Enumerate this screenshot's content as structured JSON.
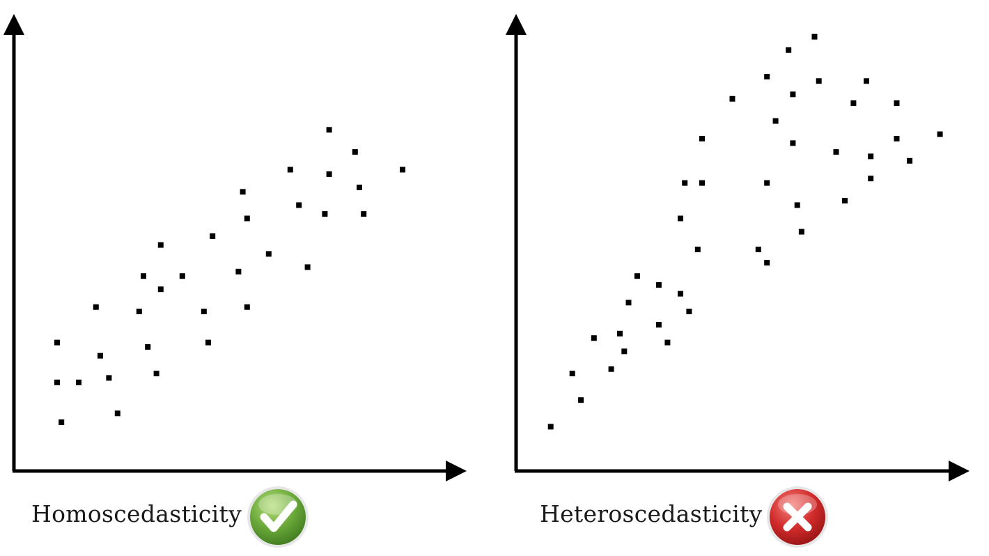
{
  "chart_data": [
    {
      "type": "scatter",
      "title": "",
      "xlabel": "",
      "ylabel": "",
      "caption": "Homoscedasticity",
      "badge": "check-icon",
      "badge_color": "#6aa83a",
      "points": [
        [
          0.1,
          0.29
        ],
        [
          0.1,
          0.2
        ],
        [
          0.11,
          0.11
        ],
        [
          0.15,
          0.2
        ],
        [
          0.19,
          0.37
        ],
        [
          0.2,
          0.26
        ],
        [
          0.22,
          0.21
        ],
        [
          0.24,
          0.13
        ],
        [
          0.29,
          0.36
        ],
        [
          0.3,
          0.44
        ],
        [
          0.31,
          0.28
        ],
        [
          0.33,
          0.22
        ],
        [
          0.34,
          0.41
        ],
        [
          0.34,
          0.51
        ],
        [
          0.39,
          0.44
        ],
        [
          0.44,
          0.36
        ],
        [
          0.45,
          0.29
        ],
        [
          0.46,
          0.53
        ],
        [
          0.52,
          0.45
        ],
        [
          0.53,
          0.63
        ],
        [
          0.54,
          0.57
        ],
        [
          0.54,
          0.37
        ],
        [
          0.59,
          0.49
        ],
        [
          0.64,
          0.68
        ],
        [
          0.66,
          0.6
        ],
        [
          0.68,
          0.46
        ],
        [
          0.72,
          0.58
        ],
        [
          0.73,
          0.67
        ],
        [
          0.73,
          0.77
        ],
        [
          0.79,
          0.72
        ],
        [
          0.8,
          0.64
        ],
        [
          0.81,
          0.58
        ],
        [
          0.9,
          0.68
        ]
      ],
      "xlim": [
        0,
        1
      ],
      "ylim": [
        0,
        1
      ]
    },
    {
      "type": "scatter",
      "title": "",
      "xlabel": "",
      "ylabel": "",
      "caption": "Heteroscedasticity",
      "badge": "cross-icon",
      "badge_color": "#d12b2b",
      "points": [
        [
          0.08,
          0.1
        ],
        [
          0.13,
          0.22
        ],
        [
          0.15,
          0.16
        ],
        [
          0.18,
          0.3
        ],
        [
          0.22,
          0.23
        ],
        [
          0.24,
          0.31
        ],
        [
          0.25,
          0.27
        ],
        [
          0.26,
          0.38
        ],
        [
          0.28,
          0.44
        ],
        [
          0.33,
          0.42
        ],
        [
          0.33,
          0.33
        ],
        [
          0.35,
          0.29
        ],
        [
          0.38,
          0.4
        ],
        [
          0.4,
          0.36
        ],
        [
          0.38,
          0.57
        ],
        [
          0.39,
          0.65
        ],
        [
          0.42,
          0.5
        ],
        [
          0.43,
          0.65
        ],
        [
          0.43,
          0.75
        ],
        [
          0.5,
          0.84
        ],
        [
          0.56,
          0.5
        ],
        [
          0.58,
          0.47
        ],
        [
          0.58,
          0.65
        ],
        [
          0.58,
          0.89
        ],
        [
          0.6,
          0.79
        ],
        [
          0.63,
          0.95
        ],
        [
          0.64,
          0.85
        ],
        [
          0.64,
          0.74
        ],
        [
          0.65,
          0.6
        ],
        [
          0.66,
          0.54
        ],
        [
          0.69,
          0.98
        ],
        [
          0.7,
          0.88
        ],
        [
          0.74,
          0.72
        ],
        [
          0.76,
          0.61
        ],
        [
          0.78,
          0.83
        ],
        [
          0.81,
          0.88
        ],
        [
          0.82,
          0.71
        ],
        [
          0.82,
          0.66
        ],
        [
          0.88,
          0.83
        ],
        [
          0.88,
          0.75
        ],
        [
          0.91,
          0.7
        ],
        [
          0.98,
          0.76
        ]
      ],
      "xlim": [
        0,
        1
      ],
      "ylim": [
        0,
        1
      ]
    }
  ]
}
